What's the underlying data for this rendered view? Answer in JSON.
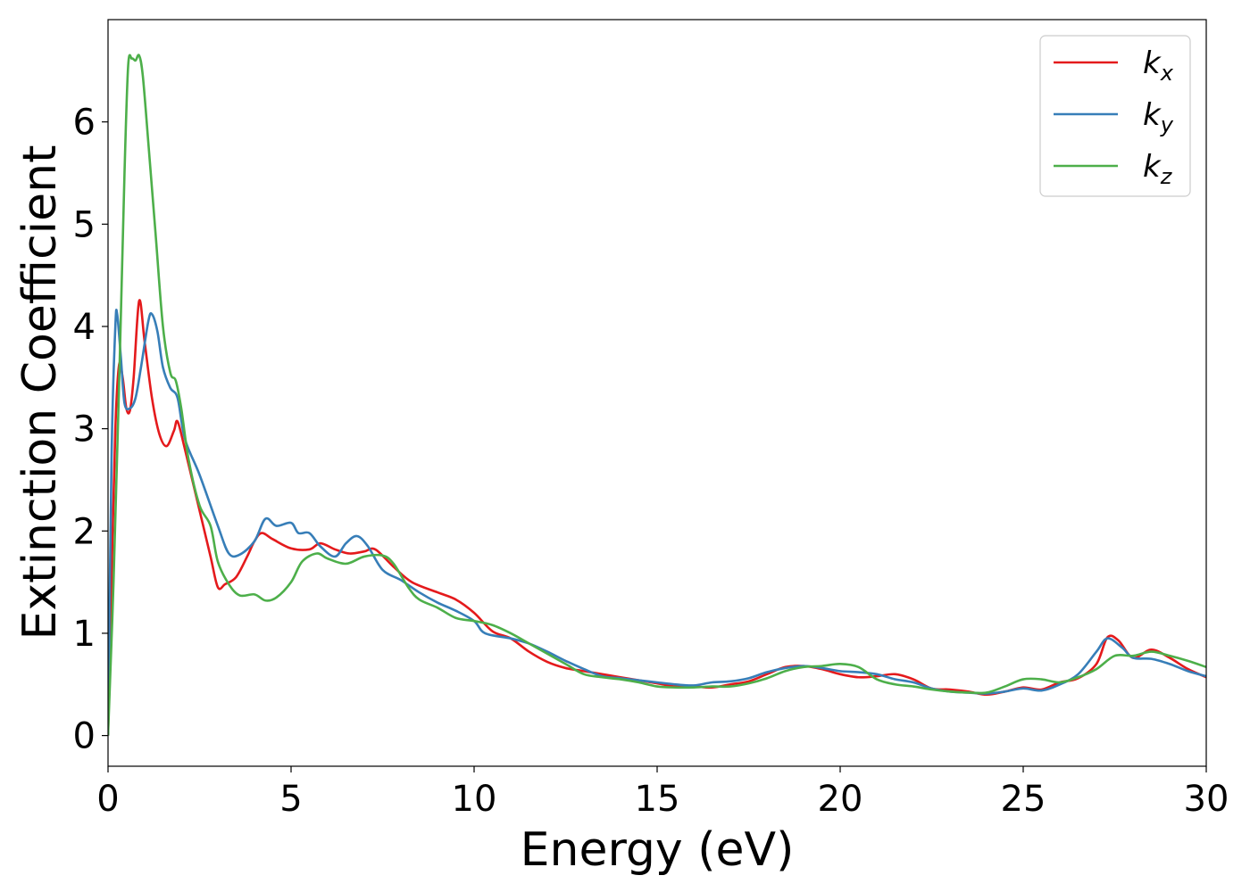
{
  "chart_data": {
    "type": "line",
    "title": "",
    "xlabel": "Energy (eV)",
    "ylabel": "Extinction Coefficient",
    "xlim": [
      0,
      30
    ],
    "ylim": [
      -0.3,
      7.0
    ],
    "xticks": [
      0,
      5,
      10,
      15,
      20,
      25,
      30
    ],
    "xtick_labels": [
      "0",
      "5",
      "10",
      "15",
      "20",
      "25",
      "30"
    ],
    "yticks": [
      0,
      1,
      2,
      3,
      4,
      5,
      6
    ],
    "ytick_labels": [
      "0",
      "1",
      "2",
      "3",
      "4",
      "5",
      "6"
    ],
    "grid": false,
    "legend_position": "top-right",
    "series": [
      {
        "name": "k",
        "subscript": "x",
        "color": "#e41a1c",
        "points": [
          [
            0,
            0
          ],
          [
            0.1,
            1.6
          ],
          [
            0.2,
            3.0
          ],
          [
            0.3,
            3.62
          ],
          [
            0.4,
            3.5
          ],
          [
            0.5,
            3.2
          ],
          [
            0.6,
            3.18
          ],
          [
            0.7,
            3.5
          ],
          [
            0.85,
            4.25
          ],
          [
            1.0,
            3.85
          ],
          [
            1.2,
            3.3
          ],
          [
            1.4,
            2.95
          ],
          [
            1.6,
            2.83
          ],
          [
            1.8,
            2.98
          ],
          [
            1.9,
            3.07
          ],
          [
            2.1,
            2.8
          ],
          [
            2.5,
            2.2
          ],
          [
            2.8,
            1.75
          ],
          [
            3.0,
            1.45
          ],
          [
            3.2,
            1.48
          ],
          [
            3.5,
            1.55
          ],
          [
            3.8,
            1.75
          ],
          [
            4.0,
            1.9
          ],
          [
            4.2,
            1.98
          ],
          [
            4.5,
            1.92
          ],
          [
            5.0,
            1.83
          ],
          [
            5.5,
            1.82
          ],
          [
            5.8,
            1.88
          ],
          [
            6.2,
            1.82
          ],
          [
            6.6,
            1.78
          ],
          [
            7.0,
            1.8
          ],
          [
            7.3,
            1.82
          ],
          [
            7.8,
            1.65
          ],
          [
            8.3,
            1.5
          ],
          [
            9.0,
            1.4
          ],
          [
            9.5,
            1.33
          ],
          [
            10.0,
            1.2
          ],
          [
            10.5,
            1.02
          ],
          [
            11.0,
            0.95
          ],
          [
            11.5,
            0.82
          ],
          [
            12.0,
            0.72
          ],
          [
            12.5,
            0.66
          ],
          [
            13.0,
            0.63
          ],
          [
            13.5,
            0.6
          ],
          [
            14.0,
            0.57
          ],
          [
            15.0,
            0.51
          ],
          [
            15.5,
            0.48
          ],
          [
            16.0,
            0.48
          ],
          [
            16.5,
            0.47
          ],
          [
            17.0,
            0.5
          ],
          [
            17.5,
            0.53
          ],
          [
            18.0,
            0.6
          ],
          [
            18.5,
            0.67
          ],
          [
            19.0,
            0.68
          ],
          [
            19.5,
            0.65
          ],
          [
            20.0,
            0.6
          ],
          [
            20.5,
            0.57
          ],
          [
            21.0,
            0.58
          ],
          [
            21.5,
            0.6
          ],
          [
            22.0,
            0.55
          ],
          [
            22.5,
            0.46
          ],
          [
            23.0,
            0.45
          ],
          [
            23.5,
            0.43
          ],
          [
            24.0,
            0.4
          ],
          [
            24.5,
            0.43
          ],
          [
            25.0,
            0.47
          ],
          [
            25.5,
            0.45
          ],
          [
            26.0,
            0.52
          ],
          [
            26.5,
            0.56
          ],
          [
            27.0,
            0.7
          ],
          [
            27.3,
            0.96
          ],
          [
            27.6,
            0.93
          ],
          [
            28.0,
            0.76
          ],
          [
            28.5,
            0.84
          ],
          [
            29.0,
            0.76
          ],
          [
            29.5,
            0.65
          ],
          [
            30.0,
            0.57
          ]
        ]
      },
      {
        "name": "k",
        "subscript": "y",
        "color": "#377eb8",
        "points": [
          [
            0,
            0
          ],
          [
            0.1,
            2.8
          ],
          [
            0.2,
            4.0
          ],
          [
            0.25,
            4.12
          ],
          [
            0.35,
            3.7
          ],
          [
            0.45,
            3.25
          ],
          [
            0.6,
            3.2
          ],
          [
            0.75,
            3.3
          ],
          [
            0.9,
            3.6
          ],
          [
            1.1,
            4.05
          ],
          [
            1.2,
            4.12
          ],
          [
            1.35,
            3.95
          ],
          [
            1.5,
            3.6
          ],
          [
            1.7,
            3.4
          ],
          [
            1.9,
            3.3
          ],
          [
            2.1,
            2.9
          ],
          [
            2.5,
            2.55
          ],
          [
            3.0,
            2.05
          ],
          [
            3.3,
            1.78
          ],
          [
            3.6,
            1.77
          ],
          [
            4.0,
            1.9
          ],
          [
            4.3,
            2.12
          ],
          [
            4.6,
            2.05
          ],
          [
            5.0,
            2.08
          ],
          [
            5.2,
            1.98
          ],
          [
            5.5,
            1.98
          ],
          [
            5.8,
            1.85
          ],
          [
            6.2,
            1.75
          ],
          [
            6.5,
            1.88
          ],
          [
            6.8,
            1.95
          ],
          [
            7.1,
            1.85
          ],
          [
            7.5,
            1.62
          ],
          [
            8.0,
            1.52
          ],
          [
            8.5,
            1.4
          ],
          [
            9.0,
            1.3
          ],
          [
            9.5,
            1.22
          ],
          [
            10.0,
            1.12
          ],
          [
            10.3,
            1.0
          ],
          [
            11.0,
            0.95
          ],
          [
            11.5,
            0.9
          ],
          [
            12.0,
            0.82
          ],
          [
            12.5,
            0.73
          ],
          [
            13.0,
            0.65
          ],
          [
            13.5,
            0.58
          ],
          [
            14.0,
            0.56
          ],
          [
            14.5,
            0.54
          ],
          [
            15.0,
            0.52
          ],
          [
            15.5,
            0.5
          ],
          [
            16.0,
            0.49
          ],
          [
            16.5,
            0.52
          ],
          [
            17.0,
            0.53
          ],
          [
            17.5,
            0.56
          ],
          [
            18.0,
            0.62
          ],
          [
            18.5,
            0.66
          ],
          [
            19.0,
            0.68
          ],
          [
            19.5,
            0.66
          ],
          [
            20.0,
            0.63
          ],
          [
            20.5,
            0.62
          ],
          [
            21.0,
            0.6
          ],
          [
            21.5,
            0.55
          ],
          [
            22.0,
            0.52
          ],
          [
            22.5,
            0.46
          ],
          [
            23.0,
            0.43
          ],
          [
            23.5,
            0.42
          ],
          [
            24.0,
            0.41
          ],
          [
            24.5,
            0.43
          ],
          [
            25.0,
            0.46
          ],
          [
            25.5,
            0.44
          ],
          [
            26.0,
            0.5
          ],
          [
            26.5,
            0.6
          ],
          [
            27.0,
            0.82
          ],
          [
            27.3,
            0.95
          ],
          [
            27.7,
            0.86
          ],
          [
            28.0,
            0.76
          ],
          [
            28.5,
            0.75
          ],
          [
            29.0,
            0.7
          ],
          [
            29.5,
            0.63
          ],
          [
            30.0,
            0.58
          ]
        ]
      },
      {
        "name": "k",
        "subscript": "z",
        "color": "#4daf4a",
        "points": [
          [
            0,
            0
          ],
          [
            0.15,
            1.5
          ],
          [
            0.3,
            3.4
          ],
          [
            0.45,
            5.5
          ],
          [
            0.55,
            6.55
          ],
          [
            0.65,
            6.62
          ],
          [
            0.75,
            6.6
          ],
          [
            0.85,
            6.65
          ],
          [
            0.95,
            6.45
          ],
          [
            1.1,
            5.8
          ],
          [
            1.3,
            4.9
          ],
          [
            1.5,
            4.0
          ],
          [
            1.7,
            3.55
          ],
          [
            1.85,
            3.47
          ],
          [
            2.0,
            3.2
          ],
          [
            2.2,
            2.7
          ],
          [
            2.5,
            2.25
          ],
          [
            2.8,
            2.05
          ],
          [
            3.0,
            1.7
          ],
          [
            3.3,
            1.48
          ],
          [
            3.6,
            1.37
          ],
          [
            4.0,
            1.38
          ],
          [
            4.3,
            1.32
          ],
          [
            4.6,
            1.35
          ],
          [
            5.0,
            1.5
          ],
          [
            5.3,
            1.7
          ],
          [
            5.7,
            1.78
          ],
          [
            6.0,
            1.73
          ],
          [
            6.5,
            1.68
          ],
          [
            7.0,
            1.75
          ],
          [
            7.5,
            1.76
          ],
          [
            7.8,
            1.68
          ],
          [
            8.2,
            1.45
          ],
          [
            8.5,
            1.33
          ],
          [
            9.0,
            1.25
          ],
          [
            9.5,
            1.15
          ],
          [
            10.0,
            1.12
          ],
          [
            10.5,
            1.08
          ],
          [
            11.0,
            1.0
          ],
          [
            11.5,
            0.9
          ],
          [
            12.0,
            0.8
          ],
          [
            12.5,
            0.7
          ],
          [
            13.0,
            0.6
          ],
          [
            13.5,
            0.57
          ],
          [
            14.0,
            0.55
          ],
          [
            14.5,
            0.52
          ],
          [
            15.0,
            0.48
          ],
          [
            15.5,
            0.47
          ],
          [
            16.0,
            0.47
          ],
          [
            16.5,
            0.48
          ],
          [
            17.0,
            0.48
          ],
          [
            17.5,
            0.51
          ],
          [
            18.0,
            0.56
          ],
          [
            18.5,
            0.63
          ],
          [
            19.0,
            0.67
          ],
          [
            19.5,
            0.68
          ],
          [
            20.0,
            0.7
          ],
          [
            20.5,
            0.67
          ],
          [
            21.0,
            0.55
          ],
          [
            21.5,
            0.5
          ],
          [
            22.0,
            0.48
          ],
          [
            22.5,
            0.45
          ],
          [
            23.0,
            0.43
          ],
          [
            23.5,
            0.42
          ],
          [
            24.0,
            0.42
          ],
          [
            24.5,
            0.48
          ],
          [
            25.0,
            0.55
          ],
          [
            25.5,
            0.55
          ],
          [
            26.0,
            0.52
          ],
          [
            26.5,
            0.57
          ],
          [
            27.0,
            0.65
          ],
          [
            27.5,
            0.78
          ],
          [
            28.0,
            0.78
          ],
          [
            28.5,
            0.82
          ],
          [
            29.0,
            0.78
          ],
          [
            29.5,
            0.73
          ],
          [
            30.0,
            0.67
          ]
        ]
      }
    ]
  }
}
